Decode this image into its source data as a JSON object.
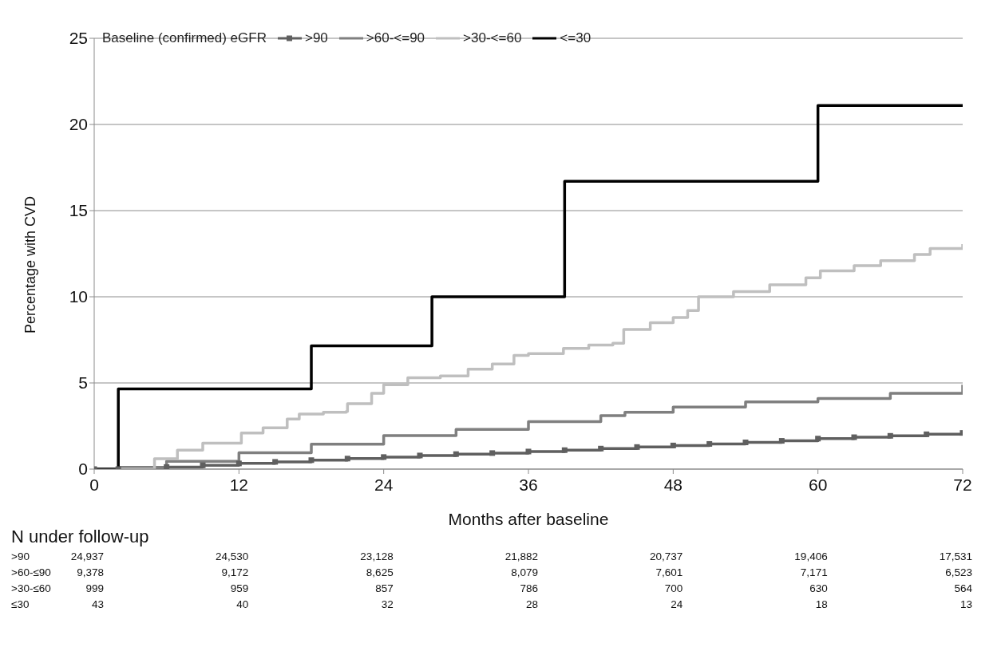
{
  "chart_data": {
    "type": "step",
    "xlabel": "Months after baseline",
    "ylabel": "Percentage with CVD",
    "legend_title": "Baseline (confirmed) eGFR",
    "legend": "top left",
    "grid": "y",
    "xlim": [
      0,
      72
    ],
    "xticks": [
      0,
      12,
      24,
      36,
      48,
      60,
      72
    ],
    "ylim": [
      0,
      25
    ],
    "yticks": [
      0,
      5,
      10,
      15,
      20,
      25
    ],
    "series": [
      {
        "name": ">90",
        "color": "#5f5f5f",
        "marker": "square",
        "x": [
          0,
          2,
          6,
          9,
          12,
          15,
          18,
          21,
          24,
          27,
          30,
          33,
          36,
          39,
          42,
          45,
          48,
          51,
          54,
          57,
          60,
          63,
          66,
          69,
          72
        ],
        "values": [
          0,
          0,
          0.12,
          0.22,
          0.33,
          0.42,
          0.52,
          0.61,
          0.7,
          0.79,
          0.87,
          0.93,
          1.02,
          1.1,
          1.19,
          1.28,
          1.37,
          1.46,
          1.55,
          1.64,
          1.77,
          1.85,
          1.93,
          2.02,
          2.1
        ]
      },
      {
        "name": ">60-<=90",
        "color": "#7f7f7f",
        "marker": "none",
        "x": [
          0,
          2,
          6,
          12,
          18,
          24,
          30,
          36,
          42,
          44,
          48,
          54,
          60,
          66,
          72
        ],
        "values": [
          0,
          0.1,
          0.45,
          0.95,
          1.45,
          1.95,
          2.3,
          2.75,
          3.1,
          3.3,
          3.6,
          3.9,
          4.1,
          4.4,
          4.9
        ]
      },
      {
        "name": ">30-<=60",
        "color": "#bfbfbf",
        "marker": "none",
        "x": [
          0,
          2.8,
          5,
          6.9,
          9,
          12.2,
          14,
          16,
          17,
          19,
          20.9,
          21,
          23,
          24,
          26,
          28.7,
          31,
          33,
          34.8,
          36,
          38.9,
          41,
          43,
          43.9,
          46.1,
          48,
          49.2,
          50.1,
          53,
          56,
          59,
          60.2,
          63,
          65.2,
          68,
          69.3,
          72
        ],
        "values": [
          0,
          0,
          0.6,
          1.1,
          1.5,
          2.1,
          2.4,
          2.9,
          3.2,
          3.3,
          3.35,
          3.8,
          4.4,
          4.9,
          5.3,
          5.4,
          5.8,
          6.1,
          6.6,
          6.7,
          7.0,
          7.2,
          7.3,
          8.1,
          8.5,
          8.8,
          9.2,
          10.0,
          10.3,
          10.7,
          11.1,
          11.5,
          11.8,
          12.1,
          12.45,
          12.8,
          13.05
        ]
      },
      {
        "name": "<=30",
        "color": "#000000",
        "marker": "none",
        "x": [
          0,
          2,
          18,
          28,
          39,
          60,
          72
        ],
        "values": [
          0,
          4.65,
          7.15,
          10.0,
          16.7,
          21.1,
          21.1
        ]
      }
    ],
    "annotations": [
      "N under follow-up",
      ">90",
      "24,937",
      "24,530",
      "23,128",
      "21,882",
      "20,737",
      "19,406",
      "17,531",
      ">60-≤90",
      "9,378",
      "9,172",
      "8,625",
      "8,079",
      "7,601",
      "7,171",
      "6,523",
      ">30-≤60",
      "999",
      "959",
      "857",
      "786",
      "700",
      "630",
      "564",
      "≤30",
      "43",
      "40",
      "32",
      "28",
      "24",
      "18",
      "13"
    ]
  }
}
